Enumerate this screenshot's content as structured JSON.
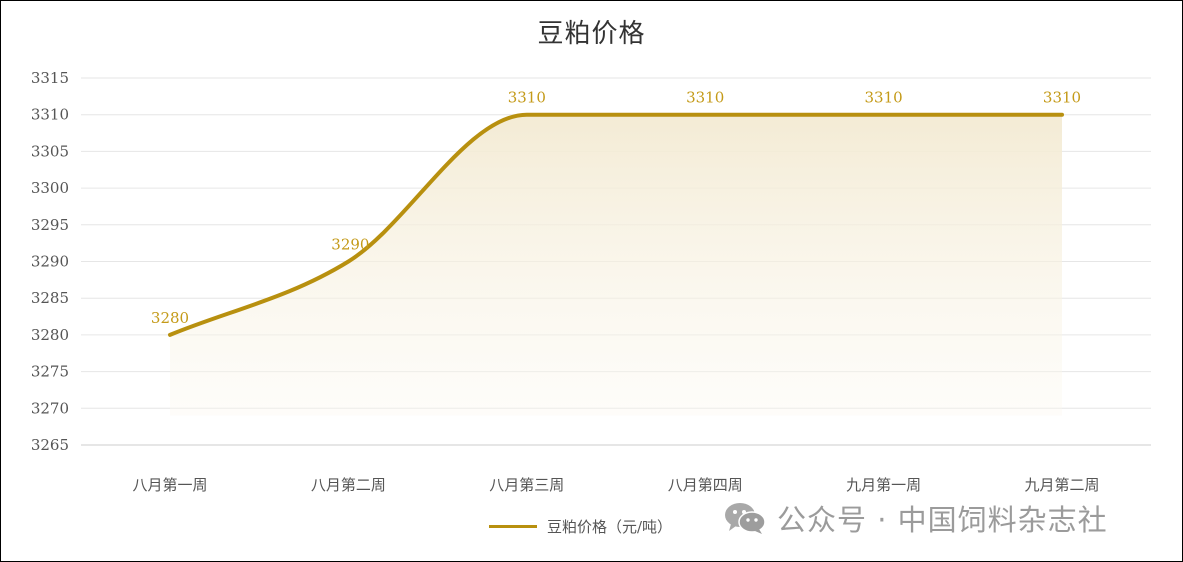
{
  "chart_data": {
    "type": "line",
    "title": "豆粕价格",
    "categories": [
      "八月第一周",
      "八月第二周",
      "八月第三周",
      "八月第四周",
      "九月第一周",
      "九月第二周"
    ],
    "series": [
      {
        "name": "豆粕价格（元/吨）",
        "values": [
          3280,
          3290,
          3310,
          3310,
          3310,
          3310
        ],
        "data_labels": [
          "3280",
          "3290",
          "3310",
          "3310",
          "3310",
          "3310"
        ]
      }
    ],
    "ylim": [
      3265,
      3315
    ],
    "yticks": [
      "3265",
      "3270",
      "3275",
      "3280",
      "3285",
      "3290",
      "3295",
      "3300",
      "3305",
      "3310",
      "3315"
    ],
    "grid": true,
    "smooth": true,
    "area_fill": true,
    "legend_position": "bottom-center",
    "colors": {
      "line": "#b8900f",
      "data_label": "#c49a18",
      "area": "#f4ecd6",
      "grid": "#e6e6e6"
    }
  },
  "watermark": {
    "text": "公众号 · 中国饲料杂志社",
    "icon": "wechat-icon"
  }
}
